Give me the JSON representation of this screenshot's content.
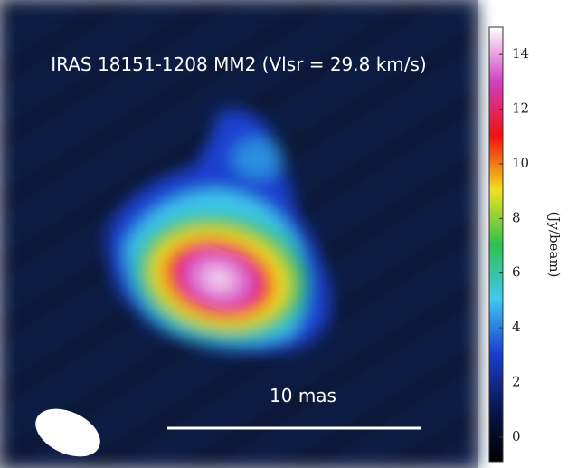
{
  "chart_data": {
    "type": "image",
    "title": "IRAS 18151-1208 MM2 (Vlsr = 29.8 km/s)",
    "scale_bar_label": "10 mas",
    "colorbar_label": "(Jy/beam)",
    "clim": [
      -0.9,
      15
    ],
    "cticks": [
      0,
      2,
      4,
      6,
      8,
      10,
      12,
      14
    ],
    "colormap": [
      "#000000",
      "#0a1850",
      "#1a3fd0",
      "#40c8f0",
      "#30c050",
      "#f0e020",
      "#f01010",
      "#d040c0",
      "#ffffff"
    ]
  }
}
